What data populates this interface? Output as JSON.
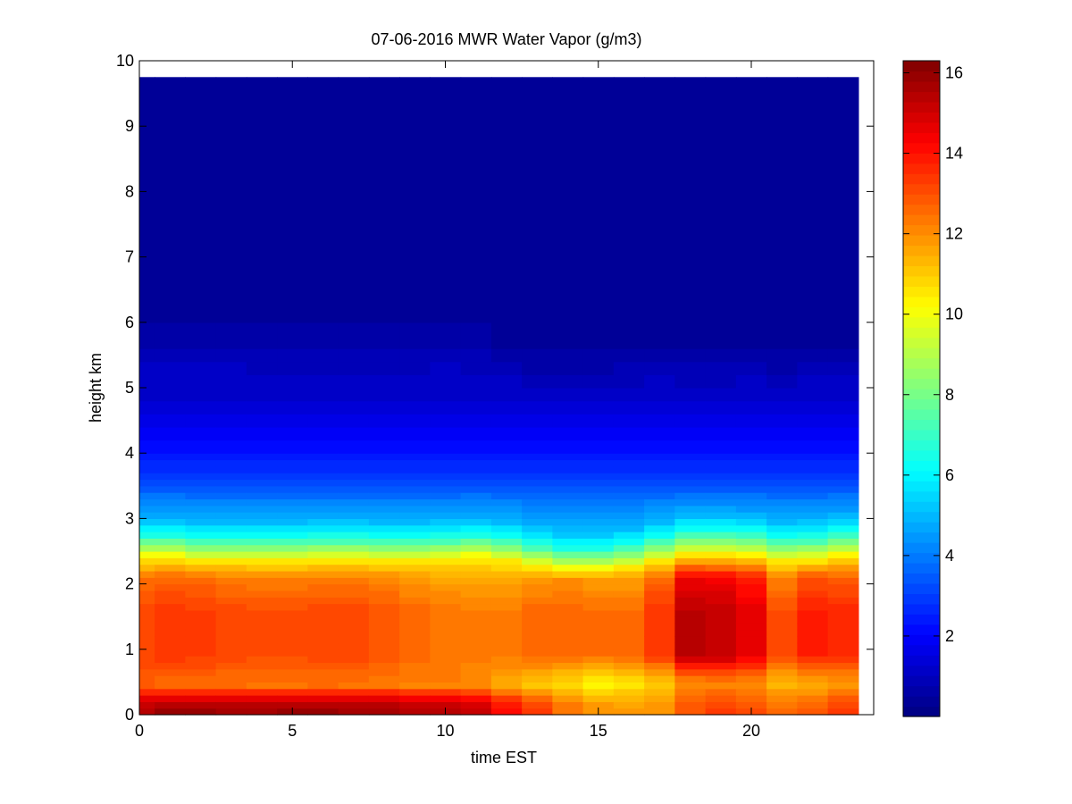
{
  "chart_data": {
    "type": "heatmap",
    "title": "07-06-2016 MWR Water Vapor (g/m3)",
    "xlabel": "time EST",
    "ylabel": "height km",
    "xlim": [
      0,
      24
    ],
    "ylim": [
      0,
      10
    ],
    "x_ticks": [
      0,
      5,
      10,
      15,
      20
    ],
    "y_ticks": [
      0,
      1,
      2,
      3,
      4,
      5,
      6,
      7,
      8,
      9,
      10
    ],
    "x_tick_labels": [
      "0",
      "5",
      "10",
      "15",
      "20"
    ],
    "y_tick_labels": [
      "0",
      "1",
      "2",
      "3",
      "4",
      "5",
      "6",
      "7",
      "8",
      "9",
      "10"
    ],
    "data_extent": {
      "x": [
        0,
        23.5
      ],
      "y": [
        0,
        9.75
      ]
    },
    "times": [
      0,
      0.5,
      1.5,
      2.5,
      3.5,
      4.5,
      5.5,
      6.5,
      7.5,
      8.5,
      9.5,
      10.5,
      11.5,
      12.5,
      13.5,
      14.5,
      15.5,
      16.5,
      17.5,
      18.5,
      19.5,
      20.5,
      21.5,
      22.5,
      23.5
    ],
    "heights": [
      0,
      0.1,
      0.2,
      0.3,
      0.4,
      0.5,
      0.6,
      0.7,
      0.8,
      0.9,
      1.0,
      1.1,
      1.2,
      1.3,
      1.4,
      1.5,
      1.6,
      1.7,
      1.8,
      1.9,
      2.0,
      2.1,
      2.2,
      2.3,
      2.4,
      2.5,
      2.6,
      2.7,
      2.8,
      2.9,
      3.0,
      3.1,
      3.2,
      3.3,
      3.4,
      3.5,
      3.6,
      3.7,
      3.8,
      3.9,
      4.0,
      4.2,
      4.4,
      4.6,
      4.8,
      5.0,
      5.2,
      5.4,
      5.6,
      6.0,
      9.75
    ],
    "surface_values": [
      15.6,
      16.0,
      16.0,
      15.9,
      15.9,
      16.0,
      16.0,
      15.9,
      15.9,
      15.7,
      15.6,
      15.3,
      14.4,
      13.5,
      12.5,
      12.0,
      11.8,
      12.0,
      13.0,
      13.3,
      13.1,
      12.6,
      12.9,
      13.4
    ],
    "lowlevel_jet_values": [
      12.8,
      12.6,
      12.6,
      12.5,
      12.4,
      12.4,
      12.5,
      12.4,
      12.3,
      12.2,
      12.2,
      12.0,
      11.5,
      11.1,
      10.8,
      10.4,
      10.6,
      11.0,
      12.0,
      12.2,
      12.0,
      11.3,
      11.5,
      11.9
    ],
    "boundary_layer_values": [
      13.2,
      13.4,
      13.3,
      13.1,
      13.0,
      13.0,
      13.1,
      13.1,
      12.9,
      12.6,
      12.4,
      12.3,
      12.3,
      12.6,
      12.7,
      12.5,
      12.5,
      13.4,
      15.3,
      15.2,
      14.6,
      13.0,
      13.8,
      13.6
    ],
    "inversion_height_km": [
      2.75,
      2.75,
      2.7,
      2.7,
      2.7,
      2.7,
      2.72,
      2.72,
      2.7,
      2.7,
      2.72,
      2.75,
      2.7,
      2.62,
      2.55,
      2.55,
      2.6,
      2.7,
      2.8,
      2.8,
      2.78,
      2.7,
      2.72,
      2.78
    ],
    "mid_level_moisture": [
      1.0,
      1.05,
      1.1,
      1.0,
      0.95,
      0.95,
      0.9,
      0.95,
      0.9,
      0.85,
      1.0,
      0.9,
      0.75,
      0.6,
      0.6,
      0.65,
      0.7,
      0.75,
      0.7,
      0.7,
      0.75,
      0.65,
      0.75,
      0.8
    ],
    "colorbar": {
      "min": 0,
      "max": 16.3,
      "ticks": [
        2,
        4,
        6,
        8,
        10,
        12,
        14,
        16
      ],
      "tick_labels": [
        "2",
        "4",
        "6",
        "8",
        "10",
        "12",
        "14",
        "16"
      ],
      "colormap": "jet",
      "levels": 64
    }
  }
}
